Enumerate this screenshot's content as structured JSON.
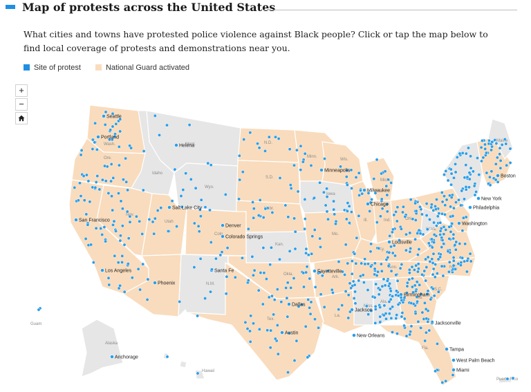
{
  "header": {
    "title": "Map of protests across the United States"
  },
  "intro": "What cities and towns have protested police violence against Black people? Click or tap the map below to find local coverage of protests and demonstrations near you.",
  "legend": [
    {
      "label": "Site of protest",
      "color": "#1f8fe3"
    },
    {
      "label": "National Guard activated",
      "color": "#f9dcbd"
    }
  ],
  "controls": {
    "zoom_in": "+",
    "zoom_out": "−",
    "home_icon": "home-icon"
  },
  "colors": {
    "guard": "#f9dcbd",
    "noguard": "#e6e6e6",
    "border": "#ffffff",
    "dot": "#2b9ee8",
    "dot_stroke": "#ffffff"
  },
  "cities": [
    {
      "name": "Seattle"
    },
    {
      "name": "Portland"
    },
    {
      "name": "Helena"
    },
    {
      "name": "Minneapolis"
    },
    {
      "name": "Boston"
    },
    {
      "name": "Milwaukee"
    },
    {
      "name": "New York"
    },
    {
      "name": "Chicago"
    },
    {
      "name": "Salt Lake City"
    },
    {
      "name": "Philadelphia"
    },
    {
      "name": "San Francisco"
    },
    {
      "name": "Denver"
    },
    {
      "name": "Washington"
    },
    {
      "name": "Colorado Springs"
    },
    {
      "name": "Louisville"
    },
    {
      "name": "Santa Fe"
    },
    {
      "name": "Fayetteville"
    },
    {
      "name": "Los Angeles"
    },
    {
      "name": "Phoenix"
    },
    {
      "name": "Birmingham"
    },
    {
      "name": "Dallas"
    },
    {
      "name": "Jackson"
    },
    {
      "name": "Jacksonville"
    },
    {
      "name": "New Orleans"
    },
    {
      "name": "Austin"
    },
    {
      "name": "Anchorage"
    },
    {
      "name": "Tampa"
    },
    {
      "name": "West Palm Beach"
    },
    {
      "name": "Miami"
    }
  ],
  "state_labels": [
    "Wash.",
    "Ore.",
    "Idaho",
    "Mont.",
    "Wyo.",
    "N.D.",
    "S.D.",
    "Nebr.",
    "Nev.",
    "Utah",
    "Colo.",
    "Kan.",
    "N.M.",
    "Okla.",
    "Tex.",
    "Ark.",
    "La.",
    "Mo.",
    "Iowa",
    "Ill.",
    "Wis.",
    "Mich.",
    "Ind.",
    "Ohio",
    "Ky.",
    "Tenn.",
    "Miss.",
    "Ala.",
    "Ga.",
    "Fla.",
    "S.C.",
    "N.C.",
    "W.Va.",
    "Maine",
    "Alaska",
    "Hawaii",
    "Guam",
    "Puerto Rico",
    "Minn."
  ]
}
